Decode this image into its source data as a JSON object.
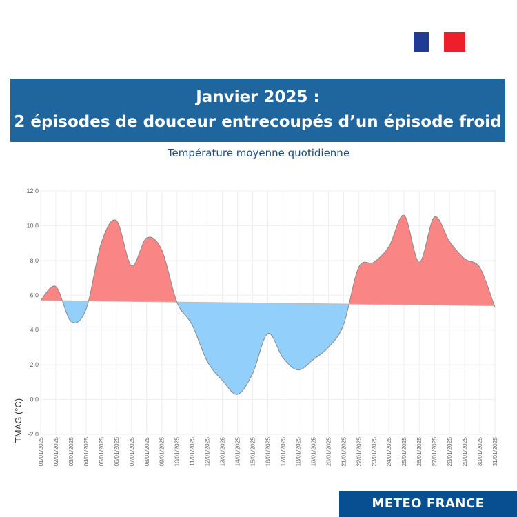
{
  "logo": {
    "name": "republique-francaise-logo",
    "colors": [
      "#1f3b93",
      "#ffffff",
      "#ee1f2b"
    ]
  },
  "banner": {
    "line1": "Janvier 2025 :",
    "line2": "2 épisodes de douceur entrecoupés d’un épisode froid",
    "color": "#1f659e"
  },
  "subtitle": "Température moyenne quotidienne",
  "footer": {
    "brand": "METEO FRANCE",
    "color": "#074f91"
  },
  "chart_data": {
    "type": "area",
    "ylabel": "TMAG (°C)",
    "xlabel": "",
    "ylim": [
      -2.0,
      12.0
    ],
    "yticks": [
      "12.0",
      "10.0",
      "8.0",
      "6.0",
      "4.0",
      "2.0",
      "0.0",
      "-2.0"
    ],
    "grid": true,
    "x": [
      "01/01/2025",
      "02/01/2025",
      "03/01/2025",
      "04/01/2025",
      "05/01/2025",
      "06/01/2025",
      "07/01/2025",
      "08/01/2025",
      "09/01/2025",
      "10/01/2025",
      "11/01/2025",
      "12/01/2025",
      "13/01/2025",
      "14/01/2025",
      "15/01/2025",
      "16/01/2025",
      "17/01/2025",
      "18/01/2025",
      "19/01/2025",
      "20/01/2025",
      "21/01/2025",
      "22/01/2025",
      "23/01/2025",
      "24/01/2025",
      "25/01/2025",
      "26/01/2025",
      "27/01/2025",
      "28/01/2025",
      "29/01/2025",
      "30/01/2025",
      "31/01/2025"
    ],
    "series": [
      {
        "values": [
          5.7,
          6.5,
          4.5,
          5.2,
          9.0,
          10.3,
          7.7,
          9.3,
          8.6,
          5.6,
          4.3,
          2.2,
          1.1,
          0.3,
          1.5,
          3.8,
          2.4,
          1.7,
          2.3,
          3.0,
          4.3,
          7.6,
          7.9,
          8.8,
          10.6,
          7.9,
          10.5,
          9.1,
          8.1,
          7.6,
          5.3
        ]
      },
      {
        "values": [
          5.7,
          5.69,
          5.68,
          5.67,
          5.66,
          5.65,
          5.64,
          5.63,
          5.62,
          5.61,
          5.6,
          5.59,
          5.58,
          5.57,
          5.56,
          5.55,
          5.53,
          5.52,
          5.51,
          5.5,
          5.49,
          5.48,
          5.47,
          5.46,
          5.45,
          5.44,
          5.43,
          5.42,
          5.41,
          5.4,
          5.39
        ]
      }
    ],
    "colors": {
      "above": "#f98585",
      "below": "#92cffa"
    }
  }
}
